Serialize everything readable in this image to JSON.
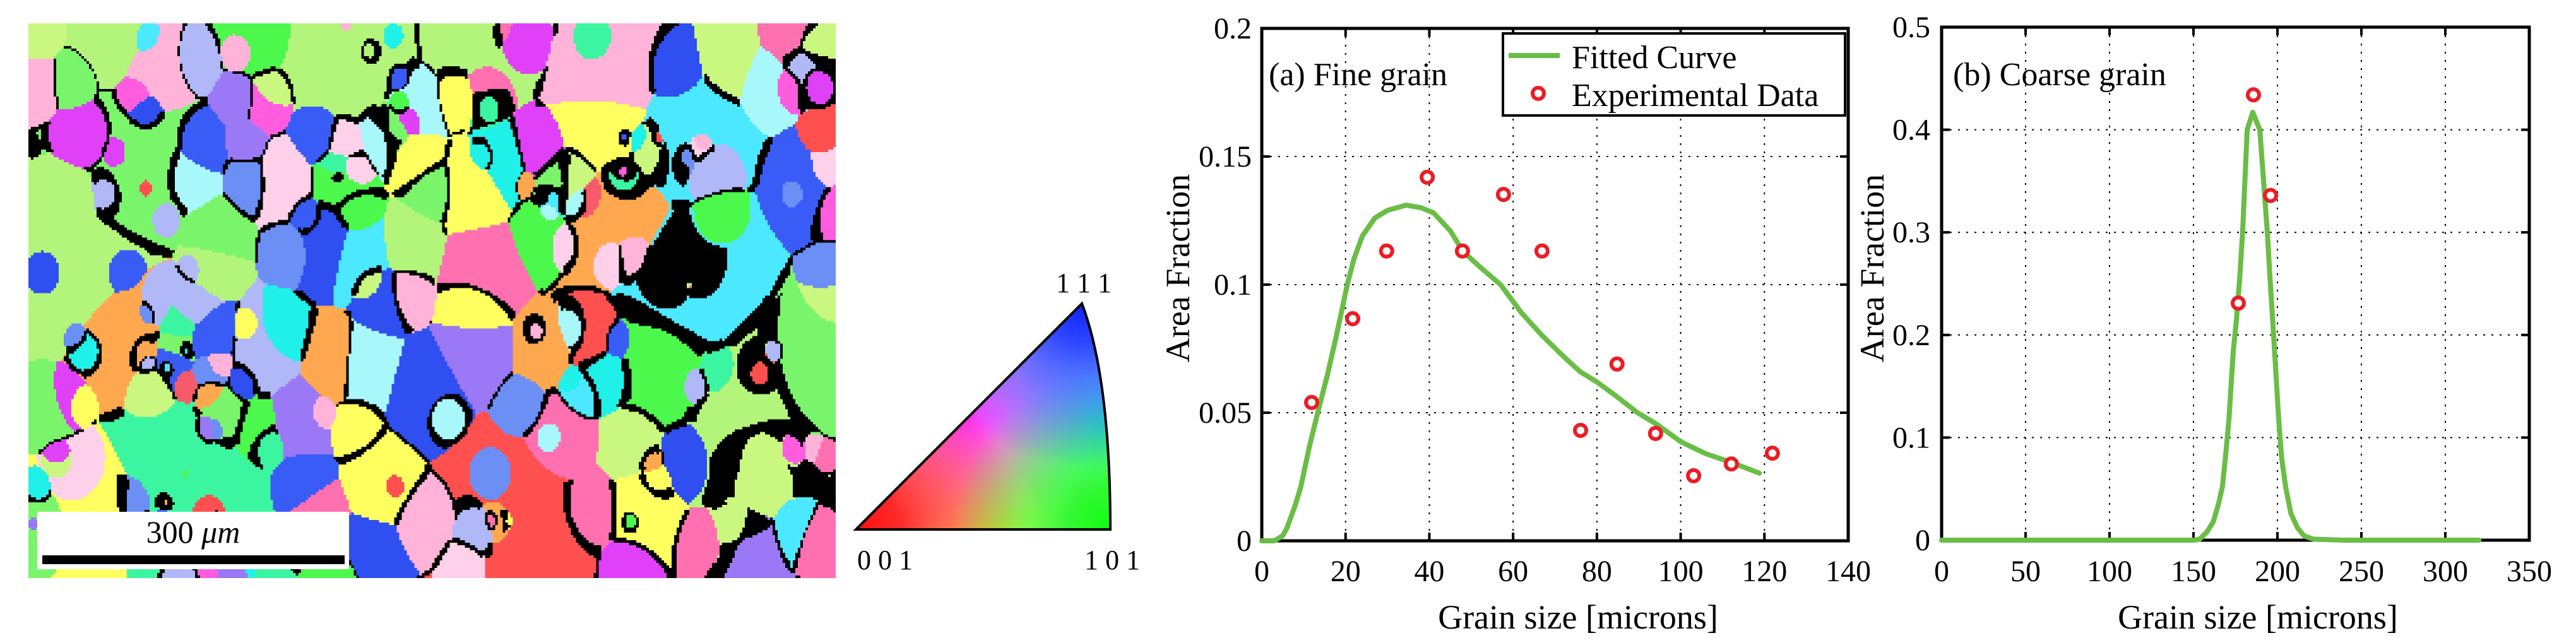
{
  "figure": {
    "ebsd_map": {
      "scale_bar": {
        "value": "300",
        "unit": "μm"
      },
      "palette": [
        "#3cf5a0",
        "#3a5cf6",
        "#f75a6b",
        "#b3f57a",
        "#a8f7fa",
        "#ff5ce0",
        "#9a78f6",
        "#ffb3d9",
        "#4be8ff",
        "#c9f780",
        "#ff5050",
        "#6b8ff5",
        "#ffd0ea",
        "#7af56b",
        "#e040f8",
        "#ffff60",
        "#ffa850",
        "#b0b8f8",
        "#1ff0e8",
        "#4cf84c",
        "#2f4ff0",
        "#ff70b0"
      ]
    },
    "ipf_legend": {
      "labels": {
        "top": "1 1 1",
        "bottom_left": "0 0 1",
        "bottom_right": "1 0 1"
      }
    }
  },
  "chart_data": [
    {
      "type": "line",
      "panel_label": "(a) Fine grain",
      "xlabel": "Grain size [microns]",
      "ylabel": "Area Fraction",
      "xlim": [
        0,
        140
      ],
      "ylim": [
        0,
        0.2
      ],
      "xticks": [
        0,
        20,
        40,
        60,
        80,
        100,
        120,
        140
      ],
      "xtick_labels": [
        "0",
        "20",
        "40",
        "60",
        "80",
        "100",
        "120",
        "140"
      ],
      "yticks": [
        0,
        0.05,
        0.1,
        0.15,
        0.2
      ],
      "ytick_labels": [
        "0",
        "0.05",
        "0.1",
        "0.15",
        "0.2"
      ],
      "grid": true,
      "legend": {
        "position": "top-right",
        "entries": [
          "Fitted Curve",
          "Experimental Data"
        ]
      },
      "series": [
        {
          "name": "Fitted Curve",
          "type": "line",
          "color": "#6abd45",
          "x": [
            0,
            3,
            5,
            6,
            8,
            9.3,
            11.4,
            13.5,
            15.7,
            17.8,
            20.4,
            22,
            24,
            27,
            30,
            34.4,
            38,
            41,
            45,
            48,
            52,
            57,
            62,
            67,
            72,
            76,
            80,
            85,
            89.7,
            94.2,
            100,
            106,
            112.3,
            118.8
          ],
          "y": [
            0,
            0,
            0.002,
            0.005,
            0.014,
            0.021,
            0.037,
            0.051,
            0.065,
            0.08,
            0.1,
            0.11,
            0.119,
            0.126,
            0.129,
            0.131,
            0.13,
            0.128,
            0.121,
            0.113,
            0.107,
            0.1,
            0.089,
            0.08,
            0.072,
            0.066,
            0.062,
            0.056,
            0.05,
            0.0456,
            0.0387,
            0.034,
            0.0305,
            0.0264
          ]
        },
        {
          "name": "Experimental Data",
          "type": "scatter",
          "color": "#ec1c24",
          "x": [
            11.9,
            21.7,
            29.8,
            39.5,
            47.9,
            57.7,
            66.9,
            76.1,
            84.8,
            94.0,
            103.1,
            112.1,
            121.9
          ],
          "y": [
            0.054,
            0.0867,
            0.1131,
            0.1419,
            0.1131,
            0.1352,
            0.1131,
            0.0431,
            0.069,
            0.0419,
            0.0254,
            0.03,
            0.0342
          ]
        }
      ]
    },
    {
      "type": "line",
      "panel_label": "(b) Coarse grain",
      "xlabel": "Grain size [microns]",
      "ylabel": "Area Fraction",
      "xlim": [
        0,
        350
      ],
      "ylim": [
        0,
        0.5
      ],
      "xticks": [
        0,
        50,
        100,
        150,
        200,
        250,
        300,
        350
      ],
      "xtick_labels": [
        "0",
        "50",
        "100",
        "150",
        "200",
        "250",
        "300",
        "350"
      ],
      "yticks": [
        0,
        0.1,
        0.2,
        0.3,
        0.4,
        0.5
      ],
      "ytick_labels": [
        "0",
        "0.1",
        "0.2",
        "0.3",
        "0.4",
        "0.5"
      ],
      "grid": true,
      "series": [
        {
          "name": "Fitted Curve",
          "type": "line",
          "color": "#6abd45",
          "x": [
            0,
            150,
            153.7,
            158,
            161.8,
            165,
            167.2,
            169.3,
            171.1,
            173.7,
            175.6,
            177.5,
            179.3,
            182.0,
            185.3,
            189.5,
            194.0,
            195.8,
            197.7,
            198.3,
            200.8,
            202.5,
            204.9,
            208,
            212,
            216,
            221.6,
            240,
            320
          ],
          "y": [
            0,
            0,
            0.001,
            0.008,
            0.018,
            0.036,
            0.052,
            0.085,
            0.117,
            0.184,
            0.215,
            0.255,
            0.301,
            0.4,
            0.417,
            0.4,
            0.3,
            0.25,
            0.2,
            0.184,
            0.117,
            0.08,
            0.052,
            0.026,
            0.012,
            0.004,
            0.001,
            0,
            0
          ]
        },
        {
          "name": "Experimental Data",
          "type": "scatter",
          "color": "#ec1c24",
          "x": [
            176.7,
            185.7,
            195.9
          ],
          "y": [
            0.231,
            0.434,
            0.336
          ]
        }
      ]
    }
  ]
}
